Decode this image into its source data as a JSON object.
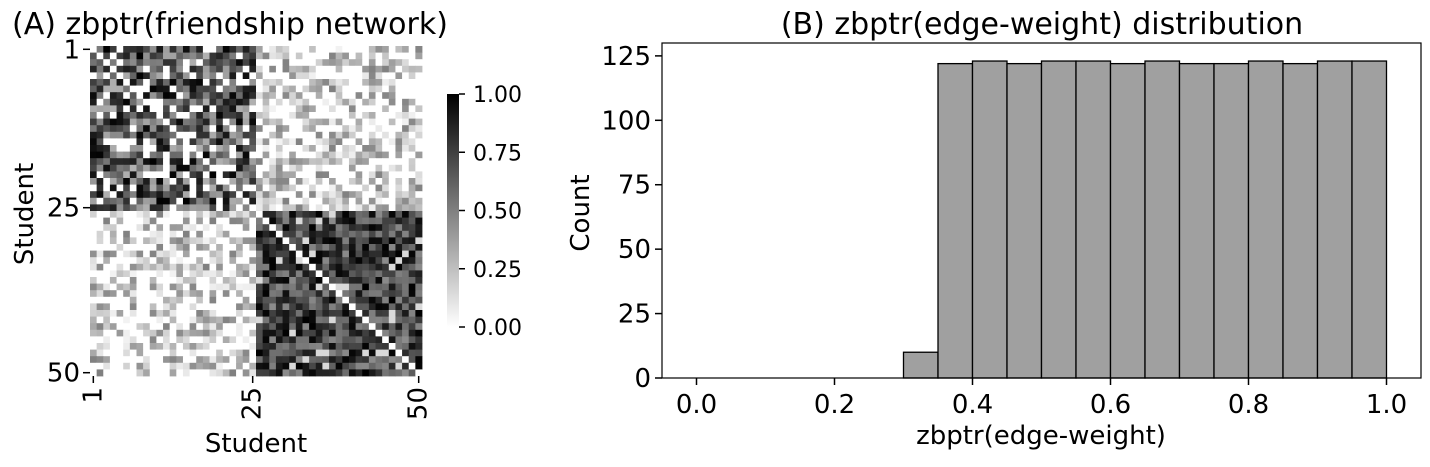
{
  "chart_data": [
    {
      "type": "heatmap",
      "title": "(A) zbptr(friendship network)",
      "xlabel": "Student",
      "ylabel": "Student",
      "rows": 50,
      "cols": 50,
      "community_split": 25,
      "within_community_level": "high (dark)",
      "between_community_level": "low (light)",
      "diagonal_value": 0,
      "x_ticks": [
        "1",
        "25",
        "50"
      ],
      "y_ticks": [
        "1",
        "25",
        "50"
      ],
      "colorbar": {
        "range": [
          0.0,
          1.0
        ],
        "ticks": [
          "0.00",
          "0.25",
          "0.50",
          "0.75",
          "1.00"
        ],
        "low_color": "#ffffff",
        "high_color": "#000000"
      }
    },
    {
      "type": "bar",
      "subtype": "histogram",
      "title": "(B) zbptr(edge-weight) distribution",
      "xlabel": "zbptr(edge-weight)",
      "ylabel": "Count",
      "bin_edges": [
        0.0,
        0.05,
        0.1,
        0.15,
        0.2,
        0.25,
        0.3,
        0.35,
        0.4,
        0.45,
        0.5,
        0.55,
        0.6,
        0.65,
        0.7,
        0.75,
        0.8,
        0.85,
        0.9,
        0.95,
        1.0
      ],
      "values": [
        0,
        0,
        0,
        0,
        0,
        0,
        10,
        122,
        123,
        122,
        123,
        123,
        122,
        123,
        122,
        122,
        123,
        122,
        123,
        123
      ],
      "xlim": [
        -0.05,
        1.05
      ],
      "ylim": [
        0,
        130
      ],
      "x_ticks": [
        "0.0",
        "0.2",
        "0.4",
        "0.6",
        "0.8",
        "1.0"
      ],
      "y_ticks": [
        "0",
        "25",
        "50",
        "75",
        "100",
        "125"
      ],
      "bar_color": "#a0a0a0",
      "edge_color": "#000000"
    }
  ]
}
